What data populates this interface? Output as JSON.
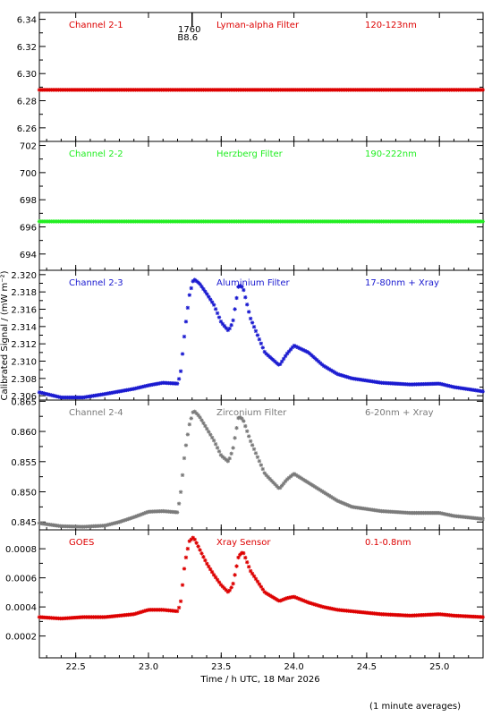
{
  "figure": {
    "ylabel": "Calibrated Signal / (mW m⁻²)",
    "xlabel": "Time / h UTC, 18 Mar 2026",
    "footnote": "(1 minute averages)",
    "xlim": [
      22.25,
      25.3
    ],
    "xticks": [
      22.5,
      23.0,
      23.5,
      24.0,
      24.5,
      25.0
    ],
    "xtick_labels": [
      "22.5",
      "23.0",
      "23.5",
      "24.0",
      "24.5",
      "25.0"
    ],
    "marker_annotation": {
      "x": 23.3,
      "text_top": "1760",
      "text_bottom": "B8.6"
    }
  },
  "chart_data": [
    {
      "type": "scatter",
      "channel_label": "Channel 2-1",
      "filter_label": "Lyman-alpha Filter",
      "band_label": "120-123nm",
      "color": "#dd0000",
      "ylim": [
        6.25,
        6.345
      ],
      "yticks": [
        6.26,
        6.28,
        6.3,
        6.32,
        6.34
      ],
      "ytick_labels": [
        "6.26",
        "6.28",
        "6.30",
        "6.32",
        "6.34"
      ],
      "x": [
        22.25,
        22.5,
        23.0,
        23.5,
        24.0,
        24.5,
        25.0,
        25.3
      ],
      "y": [
        6.288,
        6.288,
        6.288,
        6.288,
        6.288,
        6.288,
        6.288,
        6.288
      ]
    },
    {
      "type": "scatter",
      "channel_label": "Channel 2-2",
      "filter_label": "Herzberg Filter",
      "band_label": "190-222nm",
      "color": "#22ee22",
      "ylim": [
        692.8,
        702.3
      ],
      "yticks": [
        694,
        696,
        698,
        700,
        702
      ],
      "ytick_labels": [
        "694",
        "696",
        "698",
        "700",
        "702"
      ],
      "x": [
        22.25,
        22.5,
        23.0,
        23.5,
        24.0,
        24.5,
        25.0,
        25.3
      ],
      "y": [
        696.4,
        696.4,
        696.4,
        696.4,
        696.4,
        696.4,
        696.4,
        696.4
      ]
    },
    {
      "type": "scatter",
      "channel_label": "Channel 2-3",
      "filter_label": "Aluminium Filter",
      "band_label": "17-80nm + Xray",
      "color": "#1a1ad0",
      "ylim": [
        2.3055,
        2.3205
      ],
      "yticks": [
        2.306,
        2.308,
        2.31,
        2.312,
        2.314,
        2.316,
        2.318,
        2.32
      ],
      "ytick_labels": [
        "2.306",
        "2.308",
        "2.310",
        "2.312",
        "2.314",
        "2.316",
        "2.318",
        "2.320"
      ],
      "x": [
        22.25,
        22.4,
        22.55,
        22.7,
        22.8,
        22.9,
        23.0,
        23.1,
        23.2,
        23.22,
        23.25,
        23.28,
        23.31,
        23.35,
        23.4,
        23.45,
        23.5,
        23.55,
        23.58,
        23.62,
        23.65,
        23.7,
        23.8,
        23.9,
        23.95,
        24.0,
        24.1,
        24.2,
        24.3,
        24.4,
        24.6,
        24.8,
        25.0,
        25.1,
        25.3
      ],
      "y": [
        2.3064,
        2.3058,
        2.3058,
        2.3062,
        2.3065,
        2.3068,
        2.3072,
        2.3075,
        2.3074,
        2.3085,
        2.3135,
        2.3175,
        2.3195,
        2.319,
        2.3178,
        2.3165,
        2.3145,
        2.3135,
        2.3145,
        2.3188,
        2.3185,
        2.315,
        2.311,
        2.3095,
        2.3108,
        2.3118,
        2.311,
        2.3095,
        2.3085,
        2.308,
        2.3075,
        2.3073,
        2.3074,
        2.307,
        2.3065
      ]
    },
    {
      "type": "scatter",
      "channel_label": "Channel 2-4",
      "filter_label": "Zirconium Filter",
      "band_label": "6-20nm + Xray",
      "color": "#7a7a7a",
      "ylim": [
        0.8437,
        0.8652
      ],
      "yticks": [
        0.845,
        0.85,
        0.855,
        0.86,
        0.865
      ],
      "ytick_labels": [
        "0.845",
        "0.850",
        "0.855",
        "0.860",
        "0.865"
      ],
      "x": [
        22.25,
        22.4,
        22.55,
        22.7,
        22.8,
        22.9,
        23.0,
        23.1,
        23.2,
        23.22,
        23.25,
        23.28,
        23.31,
        23.35,
        23.4,
        23.45,
        23.5,
        23.55,
        23.58,
        23.62,
        23.65,
        23.7,
        23.8,
        23.9,
        23.95,
        24.0,
        24.1,
        24.2,
        24.3,
        24.4,
        24.6,
        24.8,
        25.0,
        25.1,
        25.3
      ],
      "y": [
        0.8448,
        0.8443,
        0.8442,
        0.8444,
        0.845,
        0.8458,
        0.8467,
        0.8468,
        0.8466,
        0.8495,
        0.8565,
        0.861,
        0.8635,
        0.8625,
        0.8605,
        0.8585,
        0.856,
        0.855,
        0.857,
        0.8625,
        0.862,
        0.8585,
        0.853,
        0.8505,
        0.852,
        0.853,
        0.8515,
        0.85,
        0.8485,
        0.8475,
        0.8468,
        0.8465,
        0.8465,
        0.846,
        0.8455
      ]
    },
    {
      "type": "scatter",
      "channel_label": "GOES",
      "filter_label": "Xray Sensor",
      "band_label": "0.1-0.8nm",
      "color": "#dd0000",
      "ylim": [
        5e-05,
        0.00093
      ],
      "yticks": [
        0.0002,
        0.0004,
        0.0006,
        0.0008
      ],
      "ytick_labels": [
        "0.0002",
        "0.0004",
        "0.0006",
        "0.0008"
      ],
      "x": [
        22.25,
        22.4,
        22.55,
        22.7,
        22.8,
        22.9,
        23.0,
        23.1,
        23.2,
        23.22,
        23.25,
        23.28,
        23.31,
        23.35,
        23.4,
        23.45,
        23.5,
        23.55,
        23.58,
        23.62,
        23.65,
        23.7,
        23.8,
        23.9,
        23.95,
        24.0,
        24.1,
        24.2,
        24.3,
        24.4,
        24.6,
        24.8,
        25.0,
        25.1,
        25.3
      ],
      "y": [
        0.00033,
        0.00032,
        0.00033,
        0.00033,
        0.00034,
        0.00035,
        0.00038,
        0.00038,
        0.00037,
        0.00042,
        0.0007,
        0.00085,
        0.00088,
        0.0008,
        0.0007,
        0.00062,
        0.00055,
        0.0005,
        0.00055,
        0.00075,
        0.00078,
        0.00065,
        0.0005,
        0.00044,
        0.00046,
        0.00047,
        0.00043,
        0.0004,
        0.00038,
        0.00037,
        0.00035,
        0.00034,
        0.00035,
        0.00034,
        0.00033
      ]
    }
  ]
}
